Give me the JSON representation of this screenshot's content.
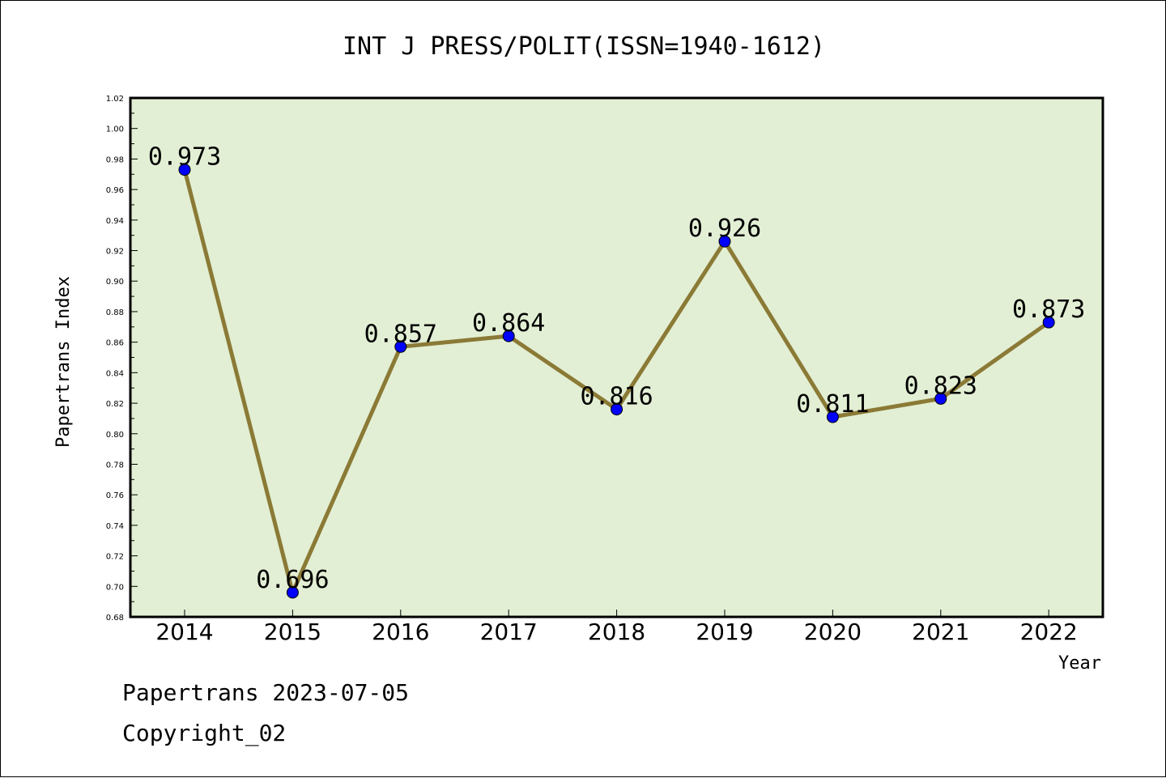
{
  "chart_data": {
    "type": "line",
    "title": "INT J PRESS/POLIT(ISSN=1940-1612)",
    "xlabel": "Year",
    "ylabel": "Papertrans Index",
    "categories": [
      "2014",
      "2015",
      "2016",
      "2017",
      "2018",
      "2019",
      "2020",
      "2021",
      "2022"
    ],
    "values": [
      0.973,
      0.696,
      0.857,
      0.864,
      0.816,
      0.926,
      0.811,
      0.823,
      0.873
    ],
    "data_labels": [
      "0.973",
      "0.696",
      "0.857",
      "0.864",
      "0.816",
      "0.926",
      "0.811",
      "0.823",
      "0.873"
    ],
    "ylim": [
      0.68,
      1.02
    ],
    "yticks": [
      "0.68",
      "0.70",
      "0.72",
      "0.74",
      "0.76",
      "0.78",
      "0.80",
      "0.82",
      "0.84",
      "0.86",
      "0.88",
      "0.90",
      "0.92",
      "0.94",
      "0.96",
      "0.98",
      "1.00",
      "1.02"
    ],
    "grid": false,
    "colors": {
      "plot_background": "#e2efd4",
      "line": "#8b7a36",
      "marker": "#0000ff"
    }
  },
  "footer": {
    "date_line": "Papertrans 2023-07-05",
    "copyright": "Copyright_02"
  }
}
